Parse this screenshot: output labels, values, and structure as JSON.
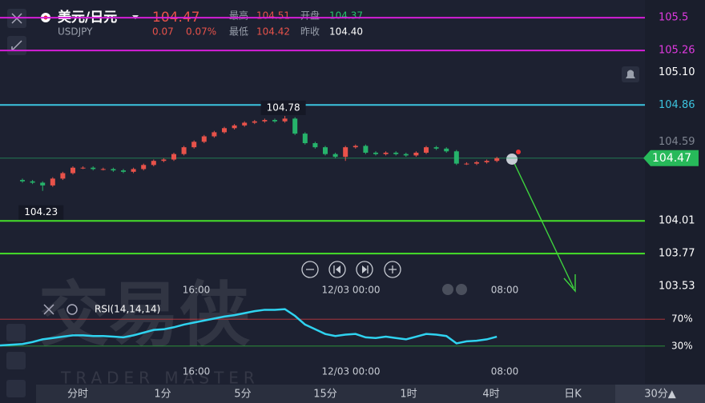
{
  "header": {
    "pair": "美元/日元",
    "symbol": "USDJPY",
    "price": "104.47",
    "change": "0.07",
    "change_pct": "0.07%",
    "high_label": "最高",
    "high": "104.51",
    "open_label": "开盘",
    "open": "104.37",
    "low_label": "最低",
    "low": "104.42",
    "prev_close_label": "昨收",
    "prev_close": "104.40"
  },
  "chart_data": {
    "type": "candlestick",
    "ylim": [
      103.46,
      105.63
    ],
    "open": [
      104.31,
      104.3,
      104.29,
      104.27,
      104.32,
      104.36,
      104.4,
      104.4,
      104.39,
      104.39,
      104.38,
      104.37,
      104.39,
      104.42,
      104.45,
      104.46,
      104.5,
      104.55,
      104.59,
      104.63,
      104.66,
      104.69,
      104.71,
      104.73,
      104.74,
      104.75,
      104.74,
      104.76,
      104.65,
      104.58,
      104.55,
      104.5,
      104.48,
      104.55,
      104.56,
      104.51,
      104.5,
      104.51,
      104.5,
      104.49,
      104.51,
      104.55,
      104.54,
      104.52,
      104.43,
      104.43,
      104.44,
      104.45
    ],
    "high": [
      104.32,
      104.31,
      104.3,
      104.33,
      104.37,
      104.41,
      104.41,
      104.41,
      104.4,
      104.4,
      104.39,
      104.4,
      104.43,
      104.46,
      104.47,
      104.51,
      104.56,
      104.6,
      104.64,
      104.67,
      104.7,
      104.72,
      104.74,
      104.75,
      104.76,
      104.76,
      104.78,
      104.77,
      104.66,
      104.59,
      104.56,
      104.51,
      104.56,
      104.57,
      104.57,
      104.52,
      104.52,
      104.52,
      104.51,
      104.52,
      104.56,
      104.56,
      104.55,
      104.53,
      104.44,
      104.45,
      104.46,
      104.48
    ],
    "low": [
      104.29,
      104.28,
      104.23,
      104.26,
      104.31,
      104.35,
      104.39,
      104.38,
      104.38,
      104.37,
      104.36,
      104.36,
      104.38,
      104.41,
      104.44,
      104.45,
      104.49,
      104.54,
      104.58,
      104.62,
      104.65,
      104.68,
      104.7,
      104.72,
      104.73,
      104.73,
      104.73,
      104.64,
      104.57,
      104.54,
      104.49,
      104.47,
      104.45,
      104.54,
      104.5,
      104.49,
      104.49,
      104.49,
      104.48,
      104.48,
      104.5,
      104.53,
      104.51,
      104.42,
      104.42,
      104.42,
      104.43,
      104.44
    ],
    "close": [
      104.3,
      104.29,
      104.27,
      104.32,
      104.36,
      104.4,
      104.4,
      104.39,
      104.39,
      104.38,
      104.37,
      104.39,
      104.42,
      104.45,
      104.46,
      104.5,
      104.55,
      104.59,
      104.63,
      104.66,
      104.69,
      104.71,
      104.73,
      104.74,
      104.75,
      104.74,
      104.76,
      104.65,
      104.58,
      104.55,
      104.5,
      104.48,
      104.55,
      104.56,
      104.51,
      104.5,
      104.51,
      104.5,
      104.49,
      104.51,
      104.55,
      104.54,
      104.52,
      104.43,
      104.43,
      104.44,
      104.45,
      104.47
    ],
    "up_color": "#e8524a",
    "down_color": "#26b36b",
    "max_label": 104.78,
    "min_label": 104.23,
    "last_price": 104.47,
    "lines": [
      {
        "value": 105.5,
        "color": "#d51ed8"
      },
      {
        "value": 105.26,
        "color": "#d51ed8"
      },
      {
        "value": 104.86,
        "color": "#3cc4df"
      },
      {
        "value": 104.01,
        "color": "#46e02a"
      },
      {
        "value": 103.77,
        "color": "#46e02a"
      }
    ],
    "price_labels": [
      {
        "value": 105.5,
        "color": "#e03ae0"
      },
      {
        "value": 105.26,
        "color": "#e03ae0"
      },
      {
        "value": 105.1,
        "label": "105.10",
        "color": "#ffffff"
      },
      {
        "value": 104.86,
        "color": "#3cc4df"
      },
      {
        "value": 104.59,
        "color": "#7e8490"
      },
      {
        "value": 104.01,
        "color": "#ffffff"
      },
      {
        "value": 103.77,
        "color": "#ffffff"
      },
      {
        "value": 103.53,
        "color": "#ffffff"
      }
    ],
    "time_labels": [
      "16:00",
      "12/03 00:00",
      "08:00"
    ],
    "rsi": {
      "title": "RSI(14,14,14)",
      "color": "#2fd3f0",
      "ylim": [
        0,
        100
      ],
      "values": [
        33,
        36,
        40,
        42,
        44,
        46,
        46,
        45,
        45,
        44,
        43,
        46,
        50,
        54,
        55,
        58,
        62,
        65,
        68,
        71,
        74,
        76,
        79,
        82,
        84,
        84,
        85,
        75,
        62,
        55,
        48,
        45,
        47,
        48,
        43,
        42,
        44,
        42,
        40,
        44,
        48,
        47,
        45,
        34,
        37,
        38,
        40,
        44
      ],
      "ticks": [
        {
          "value": 70,
          "label": "70%",
          "color": "#c0393c"
        },
        {
          "value": 30,
          "label": "30%",
          "color": "#2fa03a"
        }
      ]
    }
  },
  "watermark": {
    "brand": "交易侠",
    "brand_en": "TRADER MASTER"
  },
  "tabs": [
    "分时",
    "1分",
    "5分",
    "15分",
    "1时",
    "4时",
    "日K",
    "30分▲"
  ]
}
